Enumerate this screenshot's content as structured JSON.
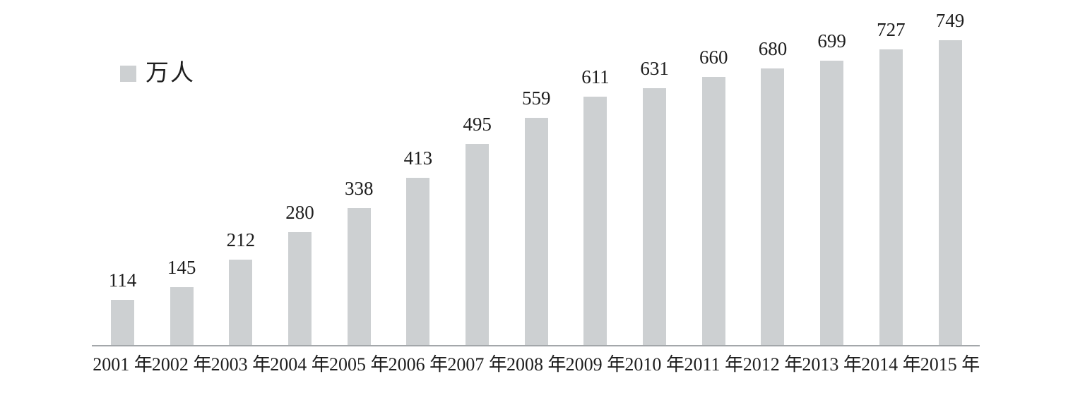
{
  "chart_data": {
    "type": "bar",
    "title": "",
    "legend_label": "万人",
    "legend_position": "top-left",
    "bar_color": "#cdd0d2",
    "axis_color": "#a3a7aa",
    "text_color": "#1e1e1e",
    "grid": false,
    "categories": [
      "2001 年",
      "2002 年",
      "2003 年",
      "2004 年",
      "2005 年",
      "2006 年",
      "2007 年",
      "2008 年",
      "2009 年",
      "2010 年",
      "2011 年",
      "2012 年",
      "2013 年",
      "2014 年",
      "2015 年"
    ],
    "values": [
      114,
      145,
      212,
      280,
      338,
      413,
      495,
      559,
      611,
      631,
      660,
      680,
      699,
      727,
      749
    ],
    "value_labels": [
      "114",
      "145",
      "212",
      "280",
      "338",
      "413",
      "495",
      "559",
      "611",
      "631",
      "660",
      "680",
      "699",
      "727",
      "749"
    ],
    "xlabel": "",
    "ylabel": "",
    "ylim": [
      0,
      780
    ]
  }
}
